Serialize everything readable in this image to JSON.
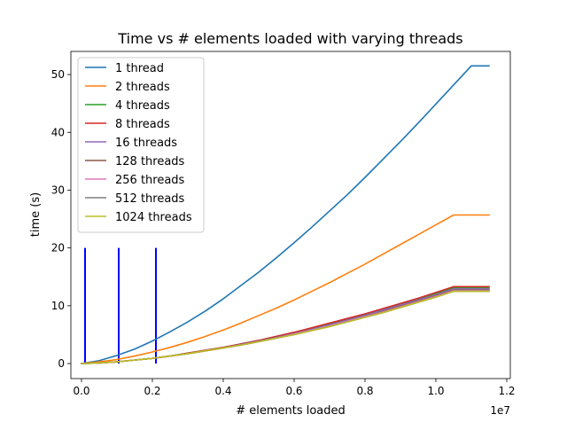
{
  "chart_data": {
    "type": "line",
    "title": "Time vs # elements loaded with varying threads",
    "xlabel": "# elements loaded",
    "ylabel": "time (s)",
    "x_offset_label": "1e7",
    "xlim": [
      -300000,
      12100000
    ],
    "ylim": [
      -2.6,
      54.0
    ],
    "grid": false,
    "legend_position": "upper left",
    "x_ticks": [
      {
        "value": 0,
        "label": "0.0"
      },
      {
        "value": 2000000,
        "label": "0.2"
      },
      {
        "value": 4000000,
        "label": "0.4"
      },
      {
        "value": 6000000,
        "label": "0.6"
      },
      {
        "value": 8000000,
        "label": "0.8"
      },
      {
        "value": 10000000,
        "label": "1.0"
      },
      {
        "value": 12000000,
        "label": "1.2"
      }
    ],
    "y_ticks": [
      {
        "value": 0,
        "label": "0"
      },
      {
        "value": 10,
        "label": "10"
      },
      {
        "value": 20,
        "label": "20"
      },
      {
        "value": 30,
        "label": "30"
      },
      {
        "value": 40,
        "label": "40"
      },
      {
        "value": 50,
        "label": "50"
      }
    ],
    "vertical_markers": {
      "color": "#0000ff",
      "x": [
        100000,
        1050000,
        2100000
      ],
      "y_range": [
        0,
        20
      ]
    },
    "x": [
      0,
      500000,
      1000000,
      1500000,
      2000000,
      2500000,
      3000000,
      3500000,
      4000000,
      4500000,
      5000000,
      5500000,
      6000000,
      6500000,
      7000000,
      7500000,
      8000000,
      8500000,
      9000000,
      9500000,
      10000000,
      10500000,
      11000000,
      11500000
    ],
    "series": [
      {
        "name": "1 thread",
        "color": "#1f77b4",
        "values": [
          0,
          0.5,
          1.4,
          2.5,
          3.9,
          5.5,
          7.2,
          9.1,
          11.2,
          13.5,
          15.8,
          18.3,
          20.9,
          23.6,
          26.4,
          29.2,
          32.2,
          35.3,
          38.4,
          41.6,
          44.9,
          48.2,
          51.5,
          51.5
        ]
      },
      {
        "name": "2 threads",
        "color": "#ff7f0e",
        "values": [
          0,
          0.3,
          0.7,
          1.3,
          2.0,
          2.8,
          3.7,
          4.7,
          5.8,
          7.0,
          8.3,
          9.6,
          11.0,
          12.5,
          14.0,
          15.6,
          17.2,
          18.9,
          20.6,
          22.3,
          24.0,
          25.7,
          25.7,
          25.7
        ]
      },
      {
        "name": "4 threads",
        "color": "#2ca02c",
        "values": [
          0,
          0.1,
          0.3,
          0.6,
          0.9,
          1.3,
          1.8,
          2.3,
          2.8,
          3.4,
          4.0,
          4.7,
          5.4,
          6.1,
          6.9,
          7.7,
          8.5,
          9.4,
          10.3,
          11.2,
          12.1,
          13.1,
          13.1,
          13.1
        ]
      },
      {
        "name": "8 threads",
        "color": "#d62728",
        "values": [
          0,
          0.1,
          0.3,
          0.6,
          0.9,
          1.3,
          1.8,
          2.3,
          2.8,
          3.4,
          4.0,
          4.7,
          5.4,
          6.2,
          7.0,
          7.8,
          8.6,
          9.5,
          10.4,
          11.3,
          12.3,
          13.3,
          13.3,
          13.3
        ]
      },
      {
        "name": "16 threads",
        "color": "#9467bd",
        "values": [
          0,
          0.1,
          0.3,
          0.6,
          0.9,
          1.3,
          1.7,
          2.2,
          2.7,
          3.3,
          3.9,
          4.5,
          5.2,
          5.9,
          6.7,
          7.5,
          8.3,
          9.2,
          10.1,
          11.0,
          11.9,
          12.9,
          12.9,
          12.9
        ]
      },
      {
        "name": "128 threads",
        "color": "#8c564b",
        "values": [
          0,
          0.1,
          0.3,
          0.6,
          0.9,
          1.3,
          1.7,
          2.2,
          2.7,
          3.2,
          3.8,
          4.4,
          5.1,
          5.8,
          6.5,
          7.3,
          8.1,
          9.0,
          9.9,
          10.8,
          11.7,
          12.7,
          12.7,
          12.7
        ]
      },
      {
        "name": "256 threads",
        "color": "#e377c2",
        "values": [
          0,
          0.1,
          0.3,
          0.6,
          0.9,
          1.3,
          1.7,
          2.2,
          2.7,
          3.2,
          3.8,
          4.4,
          5.1,
          5.8,
          6.5,
          7.3,
          8.1,
          8.9,
          9.8,
          10.7,
          11.6,
          12.6,
          12.6,
          12.6
        ]
      },
      {
        "name": "512 threads",
        "color": "#7f7f7f",
        "values": [
          0,
          0.1,
          0.3,
          0.6,
          0.9,
          1.3,
          1.7,
          2.2,
          2.7,
          3.2,
          3.8,
          4.4,
          5.0,
          5.7,
          6.4,
          7.2,
          8.0,
          8.8,
          9.7,
          10.6,
          11.5,
          12.5,
          12.5,
          12.5
        ]
      },
      {
        "name": "1024 threads",
        "color": "#bcbd22",
        "values": [
          0,
          0.1,
          0.3,
          0.6,
          0.9,
          1.3,
          1.7,
          2.2,
          2.7,
          3.2,
          3.8,
          4.4,
          5.0,
          5.7,
          6.4,
          7.2,
          8.0,
          8.8,
          9.7,
          10.6,
          11.5,
          12.5,
          12.5,
          12.5
        ]
      }
    ]
  }
}
